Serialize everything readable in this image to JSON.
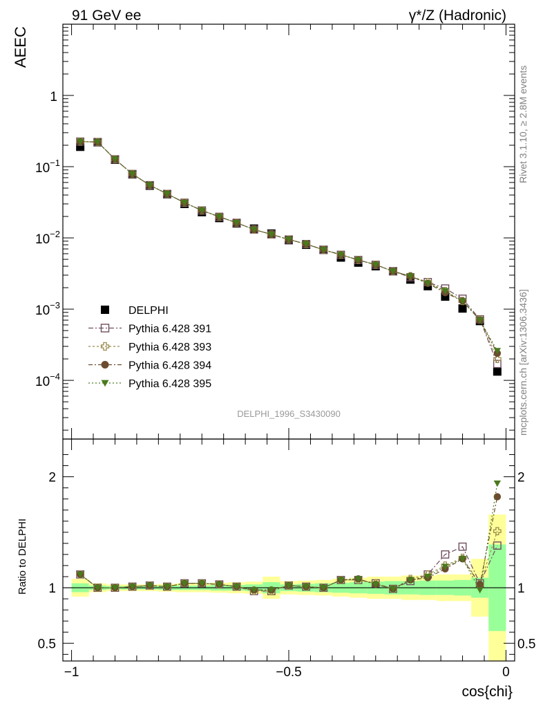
{
  "header": {
    "left_label": "91 GeV ee",
    "right_label": "γ*/Z (Hadronic)"
  },
  "side_labels": {
    "rivet": "Rivet 3.1.10, ≥ 2.8M events",
    "mcplots": "mcplots.cern.ch [arXiv:1306.3436]"
  },
  "analysis_id": "DELPHI_1996_S3430090",
  "chart_data": [
    {
      "type": "scatter",
      "ylabel": "AEEC",
      "xlim": [
        -1.02,
        0.02
      ],
      "ylim": [
        1.5e-05,
        10
      ],
      "yscale": "log",
      "yticks": [
        0.0001,
        0.001,
        0.01,
        0.1,
        1
      ],
      "ytick_labels": [
        {
          "base": "10",
          "exp": "−4"
        },
        {
          "base": "10",
          "exp": "−3"
        },
        {
          "base": "10",
          "exp": "−2"
        },
        {
          "base": "10",
          "exp": "−1"
        },
        {
          "base": "1",
          "exp": ""
        }
      ],
      "legend_position": "bottom-left",
      "x": [
        -0.98,
        -0.94,
        -0.9,
        -0.86,
        -0.82,
        -0.78,
        -0.74,
        -0.7,
        -0.66,
        -0.62,
        -0.58,
        -0.54,
        -0.5,
        -0.46,
        -0.42,
        -0.38,
        -0.34,
        -0.3,
        -0.26,
        -0.22,
        -0.18,
        -0.14,
        -0.1,
        -0.06,
        -0.02
      ],
      "series": [
        {
          "name": "DELPHI",
          "color": "#000000",
          "marker": "filled-square",
          "values": [
            0.19,
            0.22,
            0.125,
            0.078,
            0.054,
            0.041,
            0.03,
            0.023,
            0.019,
            0.016,
            0.0135,
            0.0115,
            0.0093,
            0.008,
            0.0068,
            0.0053,
            0.0045,
            0.004,
            0.0034,
            0.0026,
            0.0021,
            0.0015,
            0.00102,
            0.00068,
            0.000133
          ]
        },
        {
          "name": "Pythia 6.428 391",
          "color": "#6e4c5e",
          "marker": "open-square",
          "values": [
            0.225,
            0.222,
            0.127,
            0.079,
            0.055,
            0.0415,
            0.0312,
            0.0243,
            0.0198,
            0.0163,
            0.0131,
            0.0112,
            0.0095,
            0.0082,
            0.0068,
            0.0058,
            0.0049,
            0.0042,
            0.0034,
            0.0028,
            0.0024,
            0.00195,
            0.0014,
            0.00072,
            0.00017
          ]
        },
        {
          "name": "Pythia 6.428 393",
          "color": "#9a8a4a",
          "marker": "open-cross",
          "values": [
            0.225,
            0.222,
            0.127,
            0.079,
            0.055,
            0.0415,
            0.0312,
            0.0243,
            0.0198,
            0.0163,
            0.0131,
            0.0112,
            0.0095,
            0.0082,
            0.0068,
            0.0058,
            0.0049,
            0.0042,
            0.0034,
            0.0029,
            0.0024,
            0.0018,
            0.0013,
            0.00071,
            0.0002
          ]
        },
        {
          "name": "Pythia 6.428 394",
          "color": "#6b4c2e",
          "marker": "filled-circle",
          "values": [
            0.225,
            0.222,
            0.127,
            0.079,
            0.055,
            0.0415,
            0.0312,
            0.0243,
            0.0198,
            0.0163,
            0.0131,
            0.0112,
            0.0095,
            0.0082,
            0.0068,
            0.0058,
            0.0049,
            0.0042,
            0.0034,
            0.0029,
            0.0023,
            0.0017,
            0.0013,
            0.0007,
            0.00024
          ]
        },
        {
          "name": "Pythia 6.428 395",
          "color": "#4a7a1e",
          "marker": "filled-triangle-down",
          "values": [
            0.225,
            0.222,
            0.127,
            0.079,
            0.055,
            0.0415,
            0.0312,
            0.0243,
            0.0198,
            0.0163,
            0.0131,
            0.0112,
            0.0095,
            0.0082,
            0.0068,
            0.0058,
            0.0049,
            0.0042,
            0.0034,
            0.0029,
            0.0023,
            0.0018,
            0.0013,
            0.0007,
            0.00026
          ]
        }
      ]
    },
    {
      "type": "scatter",
      "ylabel": "Ratio to DELPHI",
      "xlabel": "cos{chi}",
      "xlim": [
        -1.02,
        0.02
      ],
      "ylim": [
        0.34,
        2.34
      ],
      "yticks": [
        0.5,
        1,
        2
      ],
      "ytick_labels": [
        "0.5",
        "1",
        "2"
      ],
      "xticks": [
        -1,
        -0.5,
        0
      ],
      "xtick_labels": [
        "−1",
        "−0.5",
        "0"
      ],
      "reference_line": 1,
      "x_edges": [
        -1.0,
        -0.96,
        -0.92,
        -0.88,
        -0.84,
        -0.8,
        -0.76,
        -0.72,
        -0.68,
        -0.64,
        -0.6,
        -0.56,
        -0.52,
        -0.48,
        -0.44,
        -0.4,
        -0.36,
        -0.32,
        -0.28,
        -0.24,
        -0.2,
        -0.16,
        -0.12,
        -0.08,
        -0.04,
        0.0
      ],
      "band_outer": [
        0.08,
        0.04,
        0.03,
        0.03,
        0.03,
        0.035,
        0.04,
        0.04,
        0.045,
        0.05,
        0.055,
        0.1,
        0.06,
        0.065,
        0.07,
        0.08,
        0.09,
        0.1,
        0.1,
        0.11,
        0.11,
        0.12,
        0.12,
        0.26,
        0.66
      ],
      "band_inner": [
        0.04,
        0.02,
        0.015,
        0.015,
        0.015,
        0.02,
        0.02,
        0.02,
        0.025,
        0.025,
        0.03,
        0.05,
        0.03,
        0.035,
        0.04,
        0.045,
        0.05,
        0.055,
        0.06,
        0.06,
        0.065,
        0.065,
        0.07,
        0.09,
        0.39
      ],
      "x": [
        -0.98,
        -0.94,
        -0.9,
        -0.86,
        -0.82,
        -0.78,
        -0.74,
        -0.7,
        -0.66,
        -0.62,
        -0.58,
        -0.54,
        -0.5,
        -0.46,
        -0.42,
        -0.38,
        -0.34,
        -0.3,
        -0.26,
        -0.22,
        -0.18,
        -0.14,
        -0.1,
        -0.06,
        -0.02
      ],
      "series": [
        {
          "name": "Pythia 6.428 391",
          "color": "#6e4c5e",
          "marker": "open-square",
          "values": [
            1.12,
            1.0,
            1.0,
            1.01,
            1.02,
            1.01,
            1.04,
            1.04,
            1.03,
            1.01,
            0.97,
            0.97,
            1.02,
            1.01,
            1.0,
            1.07,
            1.07,
            1.04,
            0.99,
            1.06,
            1.12,
            1.3,
            1.37,
            1.04,
            1.38
          ]
        },
        {
          "name": "Pythia 6.428 393",
          "color": "#9a8a4a",
          "marker": "open-cross",
          "values": [
            1.12,
            1.0,
            1.0,
            1.01,
            1.02,
            1.01,
            1.04,
            1.04,
            1.03,
            1.01,
            0.97,
            0.97,
            1.02,
            1.01,
            1.0,
            1.07,
            1.07,
            1.04,
            0.99,
            1.08,
            1.12,
            1.2,
            1.27,
            1.03,
            1.51
          ]
        },
        {
          "name": "Pythia 6.428 394",
          "color": "#6b4c2e",
          "marker": "filled-circle",
          "values": [
            1.12,
            1.0,
            1.0,
            1.01,
            1.02,
            1.01,
            1.04,
            1.04,
            1.03,
            1.01,
            0.98,
            0.98,
            1.02,
            1.01,
            1.0,
            1.07,
            1.08,
            1.03,
            0.99,
            1.07,
            1.09,
            1.17,
            1.26,
            1.03,
            1.82
          ]
        },
        {
          "name": "Pythia 6.428 395",
          "color": "#4a7a1e",
          "marker": "filled-triangle-down",
          "values": [
            1.12,
            1.0,
            1.0,
            1.01,
            1.02,
            1.01,
            1.04,
            1.04,
            1.03,
            1.01,
            0.98,
            0.98,
            1.02,
            1.01,
            1.0,
            1.07,
            1.08,
            1.03,
            0.99,
            1.07,
            1.1,
            1.19,
            1.26,
            0.98,
            1.94
          ]
        }
      ]
    }
  ]
}
